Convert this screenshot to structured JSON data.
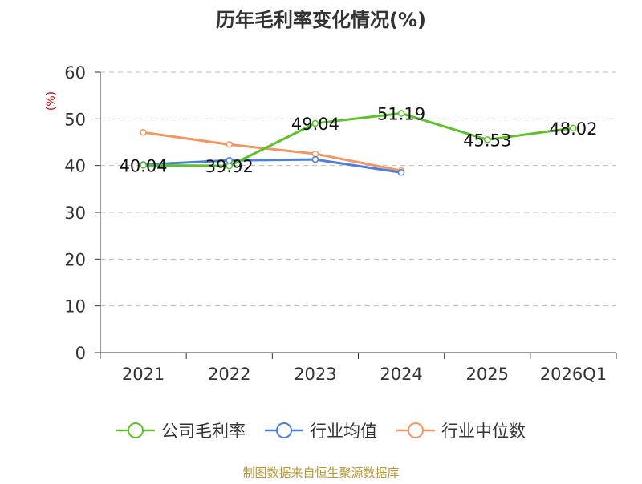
{
  "chart_data": {
    "type": "line",
    "title": "历年毛利率变化情况(%)",
    "ylabel": "(%)",
    "xlabel": "",
    "categories": [
      "2021",
      "2022",
      "2023",
      "2024",
      "2025",
      "2026Q1"
    ],
    "ylim": [
      0,
      60
    ],
    "yticks": [
      0,
      10,
      20,
      30,
      40,
      50,
      60
    ],
    "grid": true,
    "legend_position": "bottom",
    "series": [
      {
        "name": "公司毛利率",
        "color": "#5cc22a",
        "values": [
          40.04,
          39.92,
          49.04,
          51.19,
          45.53,
          48.02
        ],
        "labels": [
          "40.04",
          "39.92",
          "49.04",
          "51.19",
          "45.53",
          "48.02"
        ],
        "show_labels": true
      },
      {
        "name": "行业均值",
        "color": "#4e7fdc",
        "values": [
          40.2,
          41.1,
          41.3,
          38.5,
          null,
          null
        ],
        "show_labels": false
      },
      {
        "name": "行业中位数",
        "color": "#f59560",
        "values": [
          47.1,
          44.5,
          42.5,
          38.9,
          null,
          null
        ],
        "show_labels": false
      }
    ]
  },
  "source_text": "制图数据来自恒生聚源数据库",
  "colors": {
    "title": "#333333",
    "axis": "#333333",
    "ylabel": "#cc0000",
    "grid": "#bbbbbb",
    "source": "#b8972f"
  }
}
